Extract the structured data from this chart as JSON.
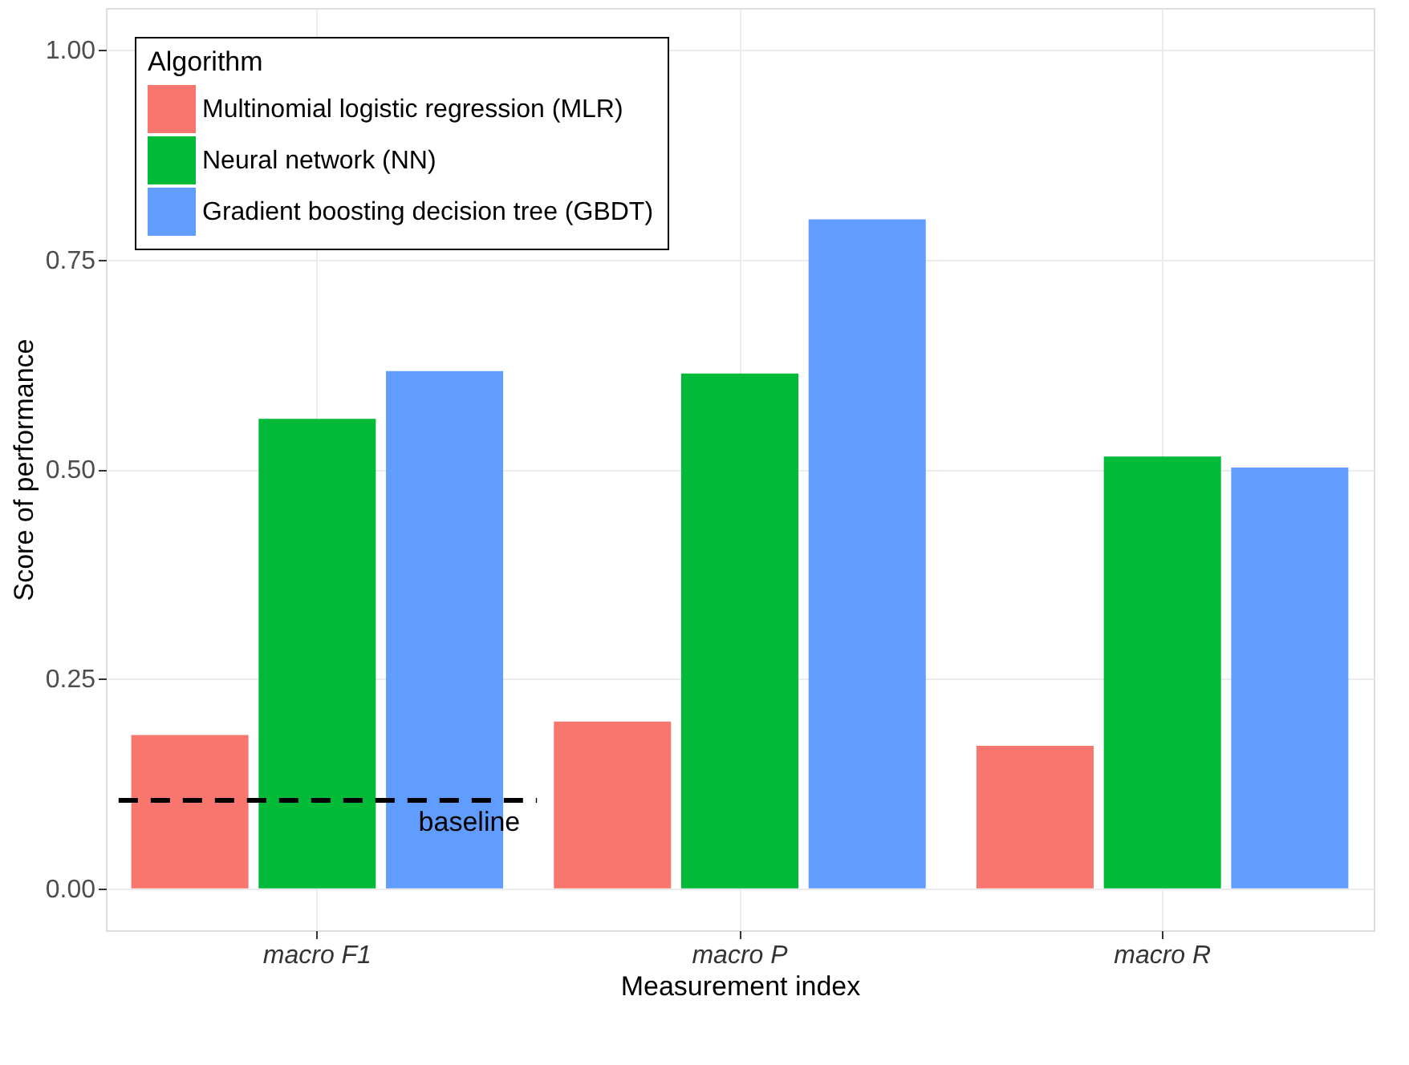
{
  "chart_data": {
    "type": "bar",
    "xlabel": "Measurement index",
    "ylabel": "Score of performance",
    "legend_title": "Algorithm",
    "categories": [
      "macro F1",
      "macro P",
      "macro R"
    ],
    "series": [
      {
        "name": "Multinomial logistic regression (MLR)",
        "color": "#f8766d",
        "values": [
          0.183,
          0.199,
          0.17
        ]
      },
      {
        "name": "Neural network (NN)",
        "color": "#00ba38",
        "values": [
          0.56,
          0.614,
          0.515
        ]
      },
      {
        "name": "Gradient boosting decision tree (GBDT)",
        "color": "#619cff",
        "values": [
          0.617,
          0.798,
          0.502
        ]
      }
    ],
    "ylim": [
      -0.05,
      1.05
    ],
    "yticks": [
      {
        "value": 0,
        "label": "0.00"
      },
      {
        "value": 0.25,
        "label": "0.25"
      },
      {
        "value": 0.5,
        "label": "0.50"
      },
      {
        "value": 0.75,
        "label": "0.75"
      },
      {
        "value": 1,
        "label": "1.00"
      }
    ],
    "ref_lines": [
      {
        "axis": "y",
        "value": 0.105,
        "label": "baseline",
        "line_style": "dashed",
        "color": "#000000"
      }
    ],
    "grid": true,
    "legend": "top left"
  }
}
